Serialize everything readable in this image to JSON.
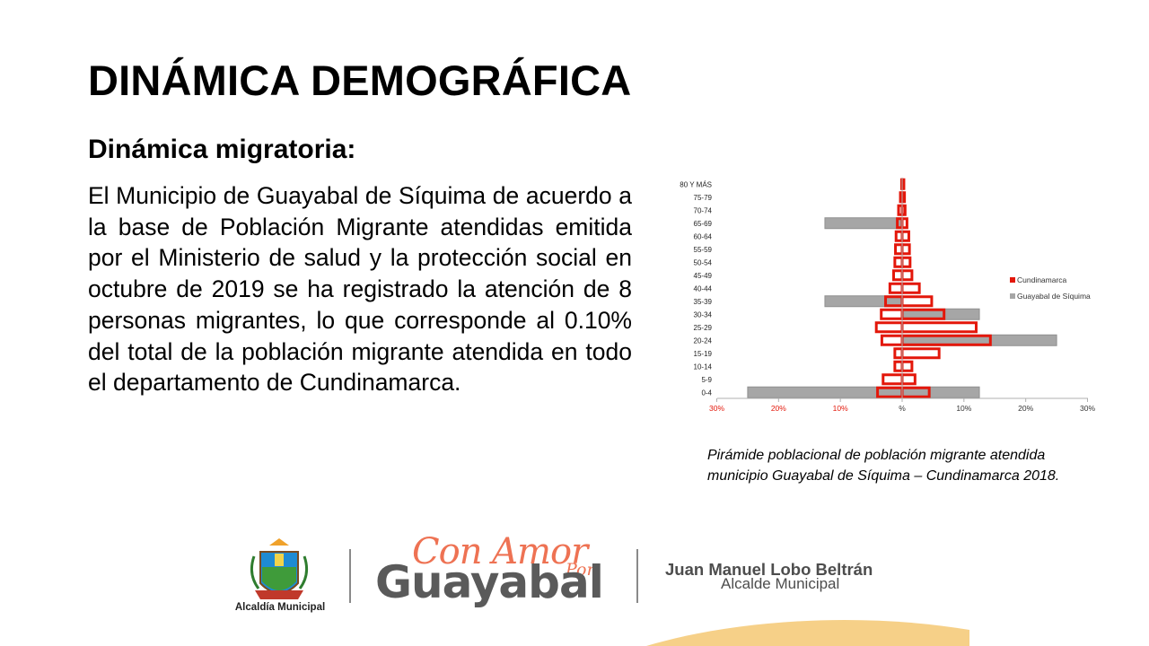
{
  "slide": {
    "title": "DINÁMICA DEMOGRÁFICA",
    "subtitle": "Dinámica migratoria:",
    "body": "El Municipio de Guayabal de Síquima de acuerdo a la base de Población Migrante atendidas emitida por el Ministerio de salud y la protección social en octubre de 2019 se ha registrado la atención de 8 personas migrantes, lo que corresponde al 0.10% del total de la población migrante atendida en todo el departamento de Cundinamarca.",
    "caption_line1": "Pirámide poblacional de población migrante atendida",
    "caption_line2": "municipio Guayabal de Síquima – Cundinamarca 2018."
  },
  "chart_data": {
    "type": "bar",
    "orientation": "horizontal-pyramid",
    "categories": [
      "80 Y MÁS",
      "75-79",
      "70-74",
      "65-69",
      "60-64",
      "55-59",
      "50-54",
      "45-49",
      "40-44",
      "35-39",
      "30-34",
      "25-29",
      "20-24",
      "15-19",
      "10-14",
      "5-9",
      "0-4"
    ],
    "tick_labels": [
      "30%",
      "20%",
      "10%",
      "%",
      "10%",
      "20%",
      "30%"
    ],
    "tick_values": [
      -30,
      -20,
      -10,
      0,
      10,
      20,
      30
    ],
    "xlim": [
      -30,
      30
    ],
    "legend_position": "right",
    "grid": false,
    "series": [
      {
        "name": "Guayabal de Síquima",
        "color": "#a6a6a6",
        "left": [
          0,
          0,
          0,
          12.5,
          0,
          0,
          0,
          0,
          0,
          12.5,
          0,
          0,
          0,
          0,
          0,
          0,
          25
        ],
        "right": [
          0,
          0,
          0,
          0,
          0,
          0,
          0,
          0,
          0,
          0,
          12.5,
          0,
          25,
          0,
          0,
          0,
          12.5
        ]
      },
      {
        "name": "Cundinamarca",
        "color": "#e3170a",
        "left": [
          0.3,
          0.5,
          0.8,
          1.0,
          1.2,
          1.3,
          1.4,
          1.6,
          2.2,
          2.9,
          3.6,
          4.4,
          3.5,
          1.4,
          1.4,
          3.3,
          4.2
        ],
        "right": [
          0.5,
          0.6,
          0.7,
          1.0,
          1.3,
          1.4,
          1.5,
          1.8,
          3.0,
          5.0,
          7.0,
          12.2,
          14.5,
          6.2,
          1.8,
          2.3,
          4.6
        ]
      }
    ]
  },
  "footer": {
    "logo_caption": "Alcaldía Municipal",
    "brand_script": "Con Amor",
    "brand_por": "Por",
    "brand_name": "Guayabal",
    "mayor_name": "Juan Manuel Lobo Beltrán",
    "mayor_role": "Alcalde Municipal",
    "colors": {
      "brand_orange": "#ee7253",
      "brand_gray": "#5a5a5a",
      "accent_gold": "#f4c46a"
    }
  }
}
